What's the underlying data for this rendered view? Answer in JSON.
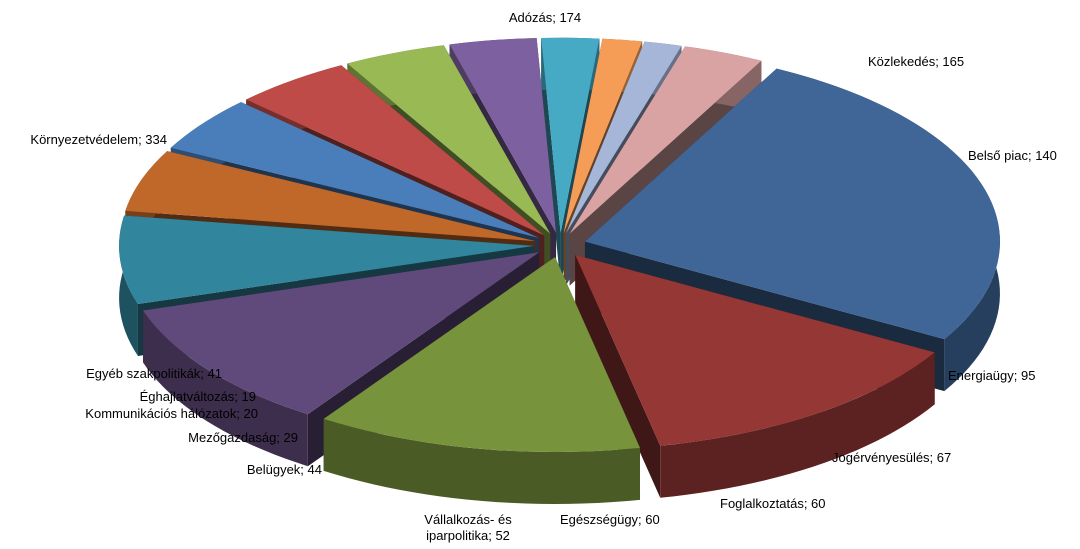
{
  "chart_data": {
    "type": "pie",
    "variant": "3d-exploded",
    "title": "",
    "slices": [
      {
        "label": "Adózás; 174",
        "name": "Adózás",
        "value": 174,
        "color": "#953735"
      },
      {
        "label": "Közlekedés; 165",
        "name": "Közlekedés",
        "value": 165,
        "color": "#77933C"
      },
      {
        "label": "Belső piac; 140",
        "name": "Belső piac",
        "value": 140,
        "color": "#604A7B"
      },
      {
        "label": "Energiaügy; 95",
        "name": "Energiaügy",
        "value": 95,
        "color": "#31859C"
      },
      {
        "label": "Jogérvényesülés; 67",
        "name": "Jogérvényesülés",
        "value": 67,
        "color": "#C0682A"
      },
      {
        "label": "Foglalkoztatás; 60",
        "name": "Foglalkoztatás",
        "value": 60,
        "color": "#4A7EBB"
      },
      {
        "label": "Egészségügy; 60",
        "name": "Egészségügy",
        "value": 60,
        "color": "#BE4B48"
      },
      {
        "label": "Vállalkozás- és iparpolitika; 52",
        "label_lines": [
          "Vállalkozás- és",
          "iparpolitika; 52"
        ],
        "name": "Vállalkozás- és iparpolitika",
        "value": 52,
        "color": "#98B954"
      },
      {
        "label": "Belügyek; 44",
        "name": "Belügyek",
        "value": 44,
        "color": "#7D60A0"
      },
      {
        "label": "Mezőgazdaság; 29",
        "name": "Mezőgazdaság",
        "value": 29,
        "color": "#46AAC5"
      },
      {
        "label": "Kommunikációs hálózatok; 20",
        "name": "Kommunikációs hálózatok",
        "value": 20,
        "color": "#F59D56"
      },
      {
        "label": "Éghajlatváltozás; 19",
        "name": "Éghajlatváltozás",
        "value": 19,
        "color": "#A5B6D9"
      },
      {
        "label": "Egyéb szakpolitikák; 41",
        "name": "Egyéb szakpolitikák",
        "value": 41,
        "color": "#D9A3A3"
      },
      {
        "label": "Környezetvédelem; 334",
        "name": "Környezetvédelem",
        "value": 334,
        "color": "#3F6697"
      }
    ]
  }
}
